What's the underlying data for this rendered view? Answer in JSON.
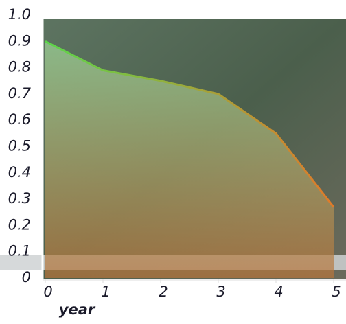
{
  "chart_data": {
    "type": "area",
    "x_label": "year",
    "x": [
      0,
      1,
      2,
      3,
      4,
      5
    ],
    "values": [
      0.9,
      0.79,
      0.75,
      0.7,
      0.55,
      0.27
    ],
    "xlim": [
      0,
      5.25
    ],
    "xticks": [
      0,
      1,
      2,
      3,
      4,
      5
    ],
    "ylim": [
      0,
      1
    ],
    "yticks": [
      0,
      0.1,
      0.2,
      0.3,
      0.4,
      0.5,
      0.6,
      0.7,
      0.8,
      0.9,
      {
        "value": 1,
        "label": "1.0"
      }
    ],
    "line_colors": [
      "#5cd64a",
      "#e07a2a"
    ],
    "fill_colors": [
      "#9fd79a",
      "#b8743a"
    ]
  }
}
